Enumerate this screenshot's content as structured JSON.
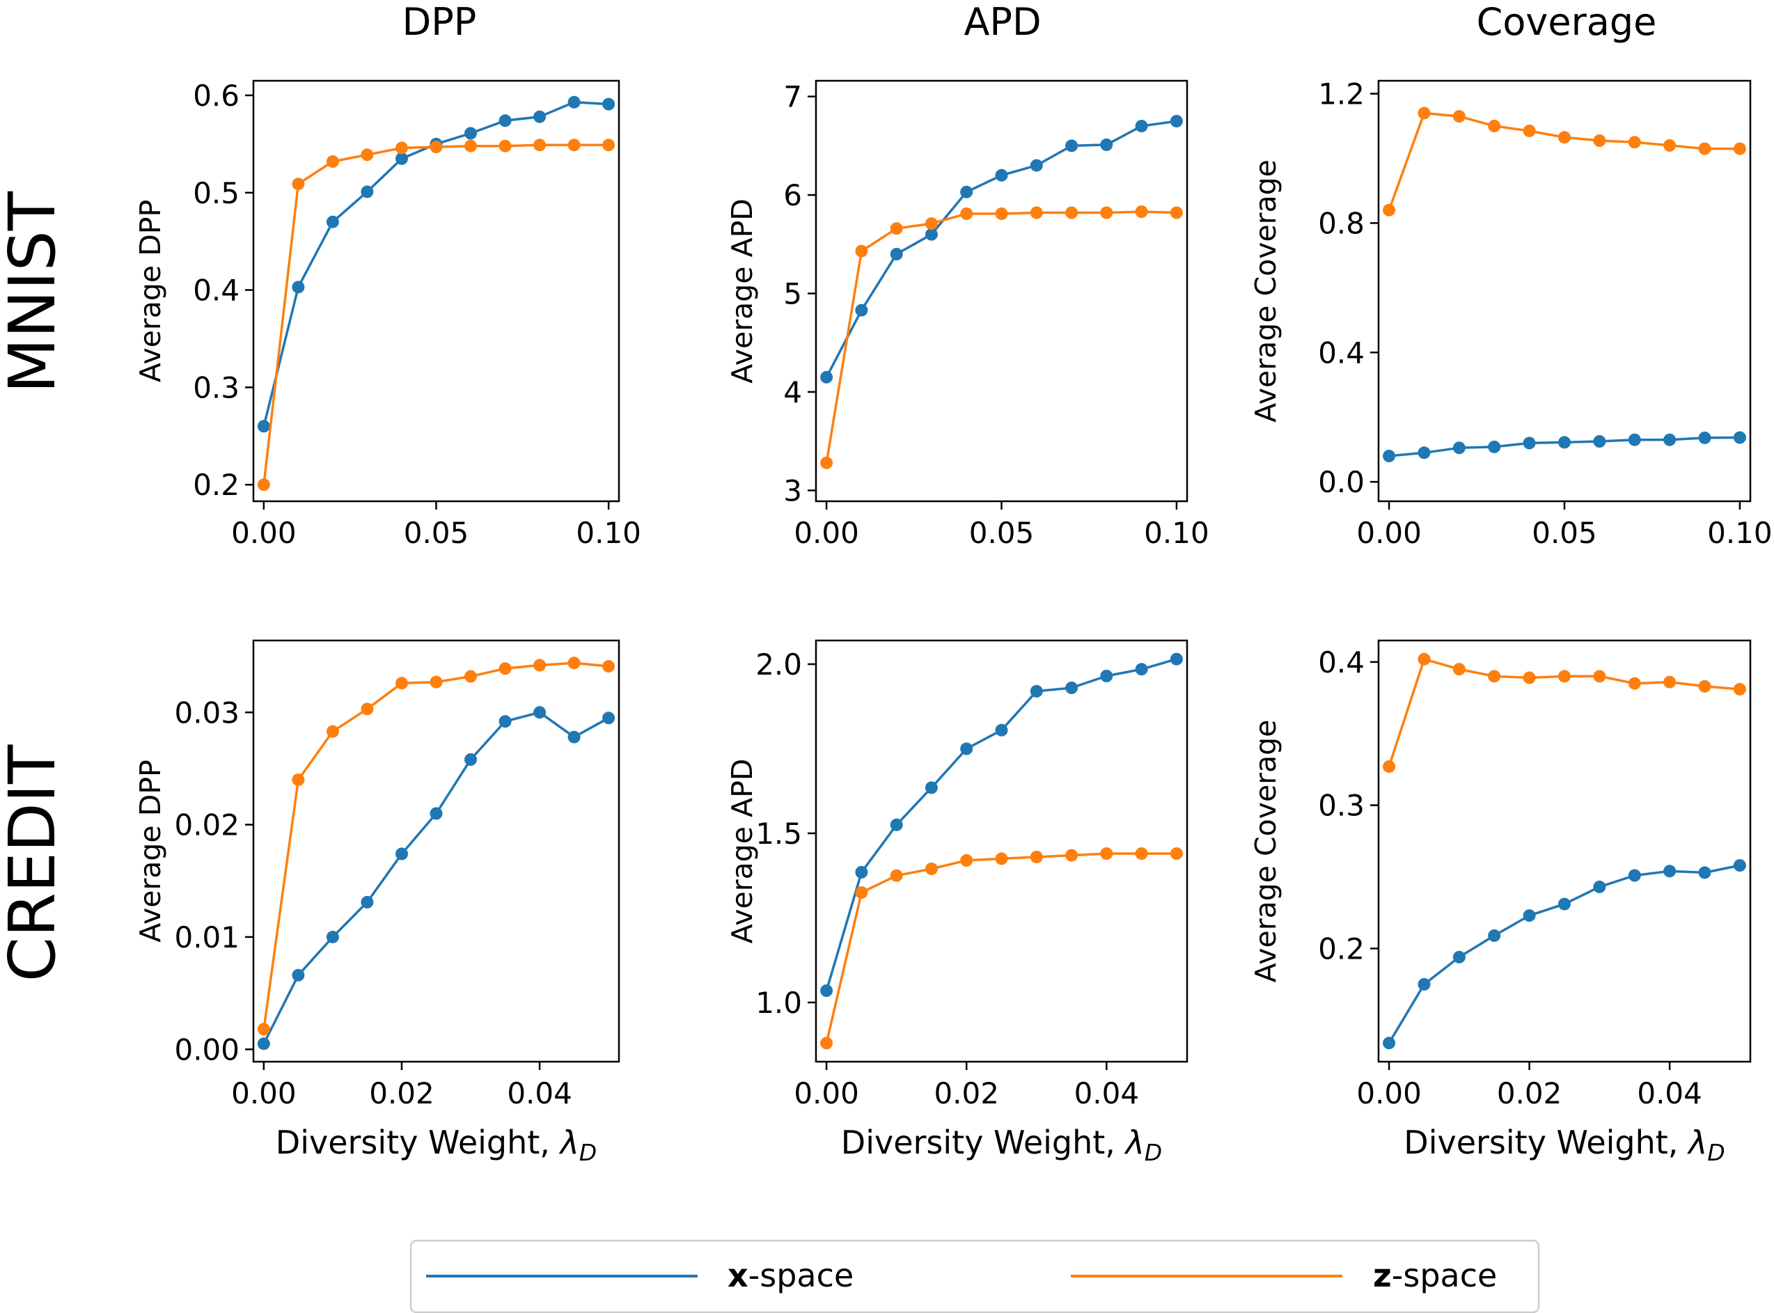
{
  "colors": {
    "x": "#1f77b4",
    "z": "#ff7f0e"
  },
  "columns": [
    "DPP",
    "APD",
    "Coverage"
  ],
  "rows": [
    "MNIST",
    "CREDIT"
  ],
  "legend": {
    "items": [
      {
        "key": "x",
        "bold": "x",
        "rest": "-space"
      },
      {
        "key": "z",
        "bold": "z",
        "rest": "-space"
      }
    ]
  },
  "chart_data": [
    {
      "type": "line",
      "row": "MNIST",
      "col": "DPP",
      "title": "DPP",
      "xlabel": "",
      "ylabel": "Average DPP",
      "xlim": [
        -0.003,
        0.103
      ],
      "ylim": [
        0.183,
        0.615
      ],
      "xticks": [
        0,
        0.05,
        0.1
      ],
      "xtick_labels": [
        "0.00",
        "0.05",
        "0.10"
      ],
      "yticks": [
        0.2,
        0.3,
        0.4,
        0.5,
        0.6
      ],
      "ytick_labels": [
        "0.2",
        "0.3",
        "0.4",
        "0.5",
        "0.6"
      ],
      "x": [
        0,
        0.01,
        0.02,
        0.03,
        0.04,
        0.05,
        0.06,
        0.07,
        0.08,
        0.09,
        0.1
      ],
      "series": [
        {
          "name": "x-space",
          "key": "x",
          "values": [
            0.26,
            0.403,
            0.47,
            0.501,
            0.535,
            0.55,
            0.561,
            0.574,
            0.578,
            0.593,
            0.591
          ]
        },
        {
          "name": "z-space",
          "key": "z",
          "values": [
            0.2,
            0.509,
            0.532,
            0.539,
            0.546,
            0.547,
            0.548,
            0.548,
            0.549,
            0.549,
            0.549
          ]
        }
      ]
    },
    {
      "type": "line",
      "row": "MNIST",
      "col": "APD",
      "title": "APD",
      "xlabel": "",
      "ylabel": "Average APD",
      "xlim": [
        -0.003,
        0.103
      ],
      "ylim": [
        2.89,
        7.16
      ],
      "xticks": [
        0,
        0.05,
        0.1
      ],
      "xtick_labels": [
        "0.00",
        "0.05",
        "0.10"
      ],
      "yticks": [
        3,
        4,
        5,
        6,
        7
      ],
      "ytick_labels": [
        "3",
        "4",
        "5",
        "6",
        "7"
      ],
      "x": [
        0,
        0.01,
        0.02,
        0.03,
        0.04,
        0.05,
        0.06,
        0.07,
        0.08,
        0.09,
        0.1
      ],
      "series": [
        {
          "name": "x-space",
          "key": "x",
          "values": [
            4.15,
            4.83,
            5.4,
            5.6,
            6.03,
            6.2,
            6.3,
            6.5,
            6.51,
            6.7,
            6.75
          ]
        },
        {
          "name": "z-space",
          "key": "z",
          "values": [
            3.28,
            5.43,
            5.66,
            5.71,
            5.81,
            5.81,
            5.82,
            5.82,
            5.82,
            5.83,
            5.82
          ]
        }
      ]
    },
    {
      "type": "line",
      "row": "MNIST",
      "col": "Coverage",
      "title": "Coverage",
      "xlabel": "",
      "ylabel": "Average Coverage",
      "xlim": [
        -0.003,
        0.103
      ],
      "ylim": [
        -0.06,
        1.24
      ],
      "xticks": [
        0,
        0.05,
        0.1
      ],
      "xtick_labels": [
        "0.00",
        "0.05",
        "0.10"
      ],
      "yticks": [
        0,
        0.4,
        0.8,
        1.2
      ],
      "ytick_labels": [
        "0.0",
        "0.4",
        "0.8",
        "1.2"
      ],
      "x": [
        0,
        0.01,
        0.02,
        0.03,
        0.04,
        0.05,
        0.06,
        0.07,
        0.08,
        0.09,
        0.1
      ],
      "series": [
        {
          "name": "x-space",
          "key": "x",
          "values": [
            0.08,
            0.09,
            0.105,
            0.108,
            0.12,
            0.122,
            0.125,
            0.13,
            0.13,
            0.136,
            0.137
          ]
        },
        {
          "name": "z-space",
          "key": "z",
          "values": [
            0.84,
            1.14,
            1.13,
            1.1,
            1.085,
            1.065,
            1.055,
            1.05,
            1.04,
            1.03,
            1.03
          ]
        }
      ]
    },
    {
      "type": "line",
      "row": "CREDIT",
      "col": "DPP",
      "title": "",
      "xlabel": "Diversity Weight, λ",
      "xlabel_sub": "D",
      "ylabel": "Average DPP",
      "xlim": [
        -0.0015,
        0.0515
      ],
      "ylim": [
        -0.0011,
        0.0364
      ],
      "xticks": [
        0,
        0.02,
        0.04
      ],
      "xtick_labels": [
        "0.00",
        "0.02",
        "0.04"
      ],
      "yticks": [
        0,
        0.01,
        0.02,
        0.03
      ],
      "ytick_labels": [
        "0.00",
        "0.01",
        "0.02",
        "0.03"
      ],
      "x": [
        0,
        0.005,
        0.01,
        0.015,
        0.02,
        0.025,
        0.03,
        0.035,
        0.04,
        0.045,
        0.05
      ],
      "series": [
        {
          "name": "x-space",
          "key": "x",
          "values": [
            0.0005,
            0.0066,
            0.01,
            0.0131,
            0.0174,
            0.021,
            0.0258,
            0.0292,
            0.03,
            0.0278,
            0.0295
          ]
        },
        {
          "name": "z-space",
          "key": "z",
          "values": [
            0.0018,
            0.024,
            0.0283,
            0.0303,
            0.0326,
            0.0327,
            0.0332,
            0.0339,
            0.0342,
            0.0344,
            0.0341
          ]
        }
      ]
    },
    {
      "type": "line",
      "row": "CREDIT",
      "col": "APD",
      "title": "",
      "xlabel": "Diversity Weight, λ",
      "xlabel_sub": "D",
      "ylabel": "Average APD",
      "xlim": [
        -0.0015,
        0.0515
      ],
      "ylim": [
        0.825,
        2.07
      ],
      "xticks": [
        0,
        0.02,
        0.04
      ],
      "xtick_labels": [
        "0.00",
        "0.02",
        "0.04"
      ],
      "yticks": [
        1.0,
        1.5,
        2.0
      ],
      "ytick_labels": [
        "1.0",
        "1.5",
        "2.0"
      ],
      "x": [
        0,
        0.005,
        0.01,
        0.015,
        0.02,
        0.025,
        0.03,
        0.035,
        0.04,
        0.045,
        0.05
      ],
      "series": [
        {
          "name": "x-space",
          "key": "x",
          "values": [
            1.035,
            1.385,
            1.525,
            1.635,
            1.75,
            1.805,
            1.92,
            1.93,
            1.965,
            1.985,
            2.015
          ]
        },
        {
          "name": "z-space",
          "key": "z",
          "values": [
            0.88,
            1.325,
            1.375,
            1.395,
            1.42,
            1.425,
            1.43,
            1.435,
            1.44,
            1.44,
            1.44
          ]
        }
      ]
    },
    {
      "type": "line",
      "row": "CREDIT",
      "col": "Coverage",
      "title": "",
      "xlabel": "Diversity Weight, λ",
      "xlabel_sub": "D",
      "ylabel": "Average Coverage",
      "xlim": [
        -0.0015,
        0.0515
      ],
      "ylim": [
        0.121,
        0.415
      ],
      "xticks": [
        0,
        0.02,
        0.04
      ],
      "xtick_labels": [
        "0.00",
        "0.02",
        "0.04"
      ],
      "yticks": [
        0.2,
        0.3,
        0.4
      ],
      "ytick_labels": [
        "0.2",
        "0.3",
        "0.4"
      ],
      "x": [
        0,
        0.005,
        0.01,
        0.015,
        0.02,
        0.025,
        0.03,
        0.035,
        0.04,
        0.045,
        0.05
      ],
      "series": [
        {
          "name": "x-space",
          "key": "x",
          "values": [
            0.134,
            0.175,
            0.194,
            0.209,
            0.223,
            0.231,
            0.243,
            0.251,
            0.254,
            0.253,
            0.258
          ]
        },
        {
          "name": "z-space",
          "key": "z",
          "values": [
            0.327,
            0.402,
            0.395,
            0.39,
            0.389,
            0.39,
            0.39,
            0.385,
            0.386,
            0.383,
            0.381
          ]
        }
      ]
    }
  ]
}
